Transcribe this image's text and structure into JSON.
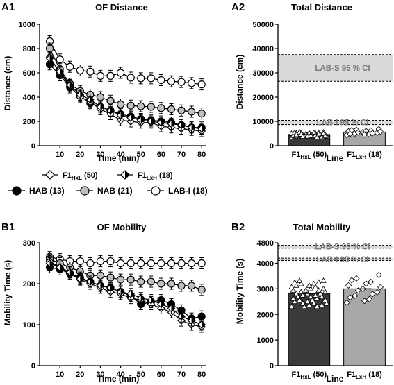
{
  "legend": {
    "items": [
      {
        "label": "F1",
        "sub": "HxL",
        "n": "(50)",
        "marker": "diamond-white"
      },
      {
        "label": "F1",
        "sub": "LxH",
        "n": "(18)",
        "marker": "diamond-half"
      },
      {
        "label": "HAB (13)",
        "marker": "circle-black"
      },
      {
        "label": "NAB (21)",
        "marker": "circle-gray"
      },
      {
        "label": "LAB-I (18)",
        "marker": "circle-white"
      }
    ]
  },
  "chart_data": [
    {
      "panel": "A1",
      "type": "line",
      "title": "OF Distance",
      "xlabel": "Time (min)",
      "ylabel": "Distance (cm)",
      "xlim": [
        0,
        82
      ],
      "ylim": [
        0,
        1000
      ],
      "xticks": [
        "10",
        "20",
        "30",
        "40",
        "50",
        "60",
        "70",
        "80"
      ],
      "yticks": [
        "0",
        "200",
        "400",
        "600",
        "800",
        "1000"
      ],
      "x": [
        5,
        10,
        15,
        20,
        25,
        30,
        35,
        40,
        45,
        50,
        55,
        60,
        65,
        70,
        75,
        80
      ],
      "series": [
        {
          "name": "LAB-I (18)",
          "marker": "circle-white",
          "values": [
            860,
            710,
            650,
            620,
            610,
            575,
            575,
            600,
            560,
            555,
            555,
            540,
            530,
            525,
            515,
            505
          ]
        },
        {
          "name": "NAB (21)",
          "marker": "circle-gray",
          "values": [
            800,
            630,
            510,
            450,
            420,
            400,
            370,
            340,
            330,
            325,
            320,
            310,
            300,
            290,
            280,
            265
          ]
        },
        {
          "name": "HAB (13)",
          "marker": "circle-black",
          "values": [
            670,
            580,
            480,
            410,
            350,
            320,
            290,
            260,
            240,
            220,
            210,
            200,
            190,
            170,
            150,
            150
          ]
        },
        {
          "name": "F1 HxL (50)",
          "marker": "diamond-white",
          "values": [
            730,
            600,
            490,
            400,
            360,
            300,
            260,
            210,
            200,
            190,
            190,
            160,
            150,
            140,
            130,
            120
          ]
        },
        {
          "name": "F1 LxH (18)",
          "marker": "diamond-half",
          "values": [
            720,
            610,
            500,
            420,
            380,
            320,
            290,
            250,
            230,
            210,
            200,
            190,
            180,
            170,
            150,
            140
          ]
        }
      ]
    },
    {
      "panel": "A2",
      "type": "bar",
      "title": "Total Distance",
      "xlabel": "Line",
      "ylabel": "Distance (cm)",
      "ylim": [
        0,
        50000
      ],
      "yticks": [
        "0",
        "10000",
        "20000",
        "30000",
        "40000",
        "50000"
      ],
      "categories": [
        {
          "label": "F1",
          "sub": "HxL",
          "n": "(50)"
        },
        {
          "label": "F1",
          "sub": "LxH",
          "n": "(18)"
        }
      ],
      "values": [
        4600,
        5600
      ],
      "bands": [
        {
          "label": "LAB-S 95 % CI",
          "low": 26500,
          "high": 37500
        },
        {
          "label": "LAB-I 95 % CI",
          "low": 8700,
          "high": 10400
        }
      ]
    },
    {
      "panel": "B1",
      "type": "line",
      "title": "OF Mobility",
      "xlabel": "Time (min)",
      "ylabel": "Mobility Time (s)",
      "xlim": [
        0,
        82
      ],
      "ylim": [
        0,
        300
      ],
      "xticks": [
        "10",
        "20",
        "30",
        "40",
        "50",
        "60",
        "70",
        "80"
      ],
      "yticks": [
        "0",
        "100",
        "200",
        "300"
      ],
      "x": [
        5,
        10,
        15,
        20,
        25,
        30,
        35,
        40,
        45,
        50,
        55,
        60,
        65,
        70,
        75,
        80
      ],
      "series": [
        {
          "name": "LAB-I (18)",
          "marker": "circle-white",
          "values": [
            265,
            260,
            255,
            255,
            250,
            255,
            255,
            250,
            250,
            250,
            250,
            250,
            250,
            250,
            250,
            250
          ]
        },
        {
          "name": "NAB (21)",
          "marker": "circle-gray",
          "values": [
            260,
            250,
            240,
            230,
            220,
            220,
            215,
            210,
            210,
            205,
            205,
            200,
            200,
            195,
            195,
            185
          ]
        },
        {
          "name": "HAB (13)",
          "marker": "circle-black",
          "values": [
            240,
            235,
            225,
            215,
            205,
            195,
            190,
            180,
            170,
            150,
            155,
            160,
            150,
            135,
            115,
            120
          ]
        },
        {
          "name": "F1 HxL (50)",
          "marker": "diamond-white",
          "values": [
            255,
            240,
            225,
            210,
            200,
            190,
            180,
            175,
            165,
            160,
            150,
            140,
            130,
            110,
            100,
            95
          ]
        },
        {
          "name": "F1 LxH (18)",
          "marker": "diamond-half",
          "values": [
            250,
            240,
            228,
            212,
            205,
            195,
            190,
            180,
            175,
            165,
            160,
            150,
            140,
            120,
            110,
            100
          ]
        }
      ]
    },
    {
      "panel": "B2",
      "type": "bar",
      "title": "Total Mobility",
      "xlabel": "Line",
      "ylabel": "Mobility Time (s)",
      "ylim": [
        0,
        4800
      ],
      "yticks": [
        "0",
        "1000",
        "2000",
        "3000",
        "4000",
        "4800"
      ],
      "categories": [
        {
          "label": "F1",
          "sub": "HxL",
          "n": "(50)"
        },
        {
          "label": "F1",
          "sub": "LxH",
          "n": "(18)"
        }
      ],
      "values": [
        2820,
        3000
      ],
      "bands": [
        {
          "label": "LAB-S 95 % CI",
          "low": 4590,
          "high": 4700
        },
        {
          "label": "LAB-I 95 % CI",
          "low": 4110,
          "high": 4200
        }
      ]
    }
  ]
}
